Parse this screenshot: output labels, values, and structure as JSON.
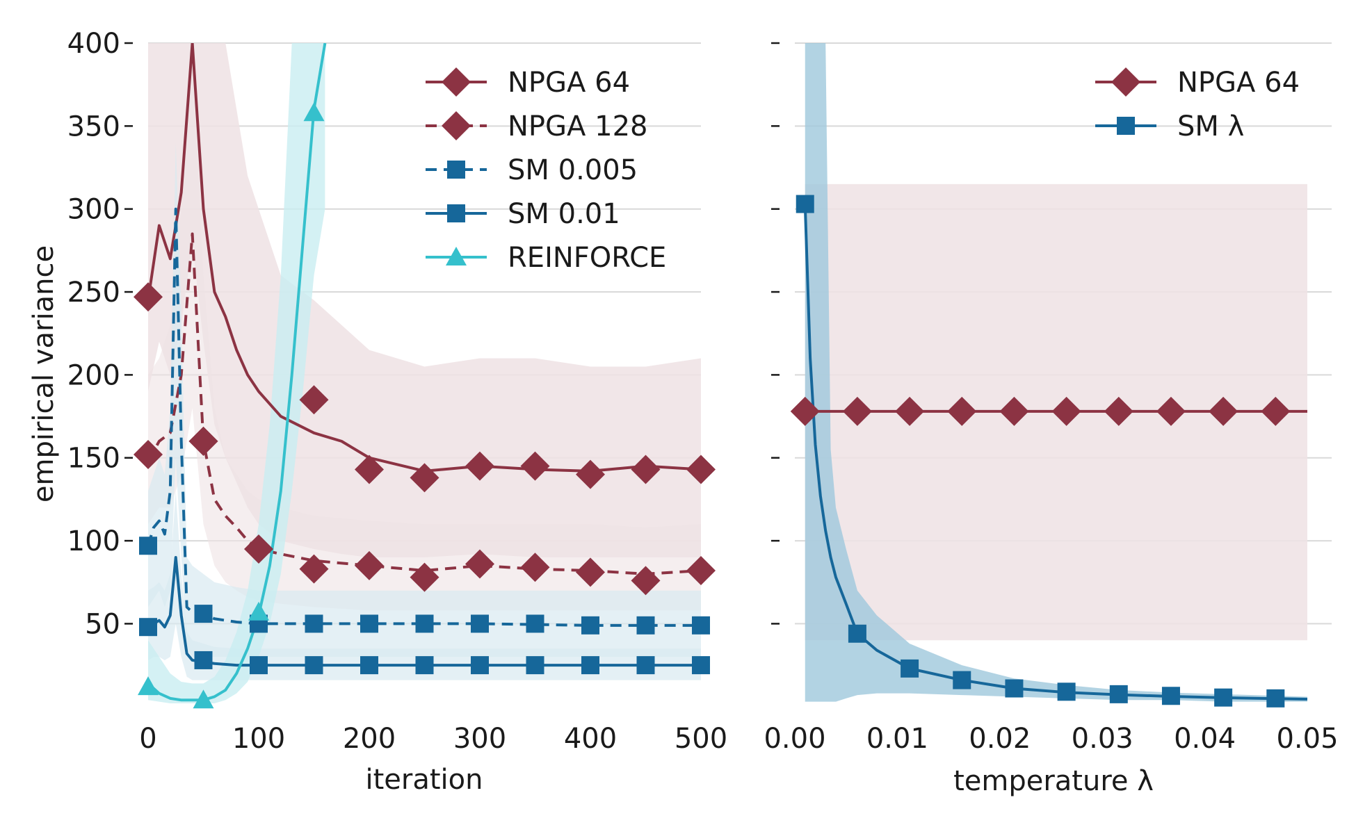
{
  "colors": {
    "npga": "#8c3343",
    "npga_band": "#efe2e4",
    "sm": "#16679a",
    "sm_band": "#9fc8dc",
    "sm_band_light": "#d8e9f1",
    "reinforce": "#35c0cc",
    "reinforce_band": "#c9eef1",
    "grid": "#d9d9d9"
  },
  "chart_data": [
    {
      "type": "line",
      "xlabel": "iteration",
      "ylabel": "empirical variance",
      "xlim": [
        0,
        500
      ],
      "ylim": [
        2,
        400
      ],
      "x_ticks": [
        "0",
        "100",
        "200",
        "300",
        "400",
        "500"
      ],
      "y_ticks": [
        "50",
        "100",
        "150",
        "200",
        "250",
        "300",
        "350",
        "400"
      ],
      "grid": "horizontal",
      "legend_position": "top-right",
      "series": [
        {
          "name": "NPGA 64",
          "style": "solid",
          "marker": "diamond",
          "x": [
            0,
            10,
            20,
            30,
            40,
            50,
            60,
            70,
            80,
            90,
            100,
            120,
            150,
            175,
            200,
            250,
            300,
            350,
            400,
            450,
            500
          ],
          "y": [
            245,
            290,
            270,
            310,
            400,
            300,
            250,
            235,
            215,
            200,
            190,
            175,
            165,
            160,
            150,
            142,
            145,
            143,
            142,
            145,
            143
          ],
          "band_lower": [
            190,
            220,
            200,
            230,
            280,
            220,
            170,
            150,
            135,
            120,
            110,
            100,
            95,
            92,
            90,
            90,
            92,
            90,
            90,
            90,
            90
          ],
          "band_upper": [
            400,
            400,
            400,
            400,
            400,
            400,
            400,
            400,
            360,
            320,
            300,
            260,
            245,
            230,
            215,
            205,
            210,
            210,
            205,
            205,
            210
          ],
          "marker_x": [
            0,
            50,
            150,
            200,
            250,
            300,
            350,
            400,
            450,
            500
          ],
          "marker_y": [
            247,
            160,
            185,
            143,
            138,
            145,
            145,
            140,
            143,
            143
          ]
        },
        {
          "name": "NPGA 128",
          "style": "dashed",
          "marker": "diamond",
          "x": [
            0,
            10,
            20,
            30,
            40,
            50,
            60,
            70,
            80,
            90,
            100,
            120,
            150,
            200,
            250,
            300,
            350,
            400,
            450,
            500
          ],
          "y": [
            148,
            160,
            165,
            200,
            285,
            160,
            125,
            115,
            108,
            100,
            95,
            92,
            88,
            85,
            82,
            85,
            83,
            82,
            80,
            82
          ],
          "band_lower": [
            110,
            120,
            120,
            140,
            180,
            110,
            85,
            75,
            70,
            66,
            64,
            62,
            60,
            58,
            58,
            58,
            58,
            58,
            58,
            58
          ],
          "band_upper": [
            200,
            210,
            230,
            300,
            390,
            260,
            180,
            150,
            140,
            130,
            125,
            120,
            115,
            112,
            110,
            110,
            110,
            110,
            108,
            110
          ],
          "marker_x": [
            0,
            50,
            100,
            150,
            200,
            250,
            300,
            350,
            400,
            450,
            500
          ],
          "marker_y": [
            152,
            160,
            95,
            83,
            85,
            78,
            86,
            84,
            81,
            76,
            82
          ]
        },
        {
          "name": "SM 0.005",
          "style": "dashed",
          "marker": "square",
          "x": [
            0,
            5,
            10,
            15,
            20,
            25,
            30,
            35,
            40,
            50,
            60,
            80,
            100,
            150,
            200,
            300,
            400,
            500
          ],
          "y": [
            97,
            108,
            112,
            104,
            130,
            300,
            160,
            60,
            57,
            56,
            53,
            51,
            50,
            50,
            50,
            50,
            49,
            49
          ],
          "band_lower": [
            60,
            65,
            70,
            60,
            70,
            150,
            90,
            35,
            30,
            30,
            30,
            30,
            30,
            30,
            30,
            30,
            30,
            30
          ],
          "band_upper": [
            130,
            140,
            150,
            140,
            180,
            340,
            240,
            90,
            85,
            80,
            75,
            72,
            70,
            70,
            70,
            70,
            70,
            70
          ],
          "marker_x": [
            0,
            50,
            100,
            150,
            200,
            250,
            300,
            350,
            400,
            450,
            500
          ],
          "marker_y": [
            97,
            56,
            50,
            50,
            50,
            50,
            50,
            50,
            49,
            49,
            49
          ]
        },
        {
          "name": "SM 0.01",
          "style": "solid",
          "marker": "square",
          "x": [
            0,
            5,
            10,
            15,
            20,
            25,
            30,
            35,
            40,
            50,
            60,
            80,
            100,
            150,
            200,
            300,
            400,
            500
          ],
          "y": [
            48,
            50,
            52,
            48,
            55,
            90,
            55,
            32,
            28,
            27,
            26,
            25,
            25,
            25,
            25,
            25,
            25,
            25
          ],
          "band_lower": [
            28,
            30,
            30,
            28,
            30,
            50,
            30,
            18,
            16,
            16,
            16,
            16,
            16,
            16,
            16,
            16,
            16,
            16
          ],
          "band_upper": [
            70,
            72,
            75,
            70,
            80,
            130,
            80,
            45,
            40,
            38,
            36,
            35,
            35,
            35,
            35,
            35,
            35,
            35
          ],
          "marker_x": [
            0,
            50,
            100,
            150,
            200,
            250,
            300,
            350,
            400,
            450,
            500
          ],
          "marker_y": [
            48,
            28,
            25,
            25,
            25,
            25,
            25,
            25,
            25,
            25,
            25
          ]
        },
        {
          "name": "REINFORCE",
          "style": "solid",
          "marker": "triangle",
          "x": [
            0,
            10,
            20,
            30,
            40,
            50,
            60,
            70,
            80,
            90,
            100,
            110,
            120,
            130,
            140,
            150,
            160
          ],
          "y": [
            14,
            8,
            5,
            4,
            4,
            4,
            6,
            10,
            20,
            35,
            55,
            85,
            130,
            200,
            280,
            360,
            400
          ],
          "band_lower": [
            4,
            3,
            2,
            2,
            2,
            2,
            2,
            4,
            8,
            15,
            30,
            50,
            80,
            130,
            190,
            260,
            300
          ],
          "band_upper": [
            40,
            30,
            20,
            15,
            14,
            14,
            18,
            28,
            45,
            70,
            110,
            170,
            260,
            400,
            400,
            400,
            400
          ],
          "marker_x": [
            0,
            50,
            100,
            150
          ],
          "marker_y": [
            12,
            4,
            57,
            358
          ]
        }
      ]
    },
    {
      "type": "line",
      "xlabel": "temperature λ",
      "ylabel": "",
      "xlim": [
        0,
        0.05
      ],
      "ylim": [
        2,
        400
      ],
      "x_ticks": [
        "0.00",
        "0.01",
        "0.02",
        "0.03",
        "0.04",
        "0.05"
      ],
      "y_ticks": [],
      "grid": "horizontal",
      "legend_position": "top-right",
      "series": [
        {
          "name": "NPGA 64",
          "style": "solid",
          "marker": "diamond",
          "x": [
            0.001,
            0.05
          ],
          "y": [
            178,
            178
          ],
          "band_lower": [
            40,
            40
          ],
          "band_upper": [
            315,
            315
          ],
          "marker_x": [
            0.001,
            0.0061,
            0.0112,
            0.0163,
            0.0214,
            0.0265,
            0.0316,
            0.0367,
            0.0418,
            0.0469
          ],
          "marker_y": [
            178,
            178,
            178,
            178,
            178,
            178,
            178,
            178,
            178,
            178
          ]
        },
        {
          "name": "SM λ",
          "style": "solid",
          "marker": "square",
          "x": [
            0.001,
            0.0015,
            0.002,
            0.0025,
            0.003,
            0.0035,
            0.004,
            0.005,
            0.0061,
            0.008,
            0.0112,
            0.0163,
            0.0214,
            0.0265,
            0.0316,
            0.0367,
            0.0418,
            0.05
          ],
          "y": [
            303,
            210,
            158,
            127,
            106,
            90,
            78,
            62,
            44,
            34,
            23,
            16,
            11,
            8.6,
            7.2,
            6.2,
            5.4,
            4.5
          ],
          "band_lower": [
            3,
            3,
            3,
            3,
            3,
            3,
            3,
            5,
            7,
            8,
            8,
            7,
            6,
            5,
            4,
            4,
            3,
            3
          ],
          "band_upper": [
            400,
            400,
            400,
            400,
            400,
            155,
            120,
            95,
            70,
            55,
            38,
            25,
            17,
            13,
            10,
            8.5,
            7.5,
            6
          ],
          "marker_x": [
            0.001,
            0.0061,
            0.0112,
            0.0163,
            0.0214,
            0.0265,
            0.0316,
            0.0367,
            0.0418,
            0.0469
          ],
          "marker_y": [
            303,
            44,
            23,
            16,
            11,
            9,
            7.5,
            6.5,
            5.5,
            5
          ]
        }
      ]
    }
  ]
}
